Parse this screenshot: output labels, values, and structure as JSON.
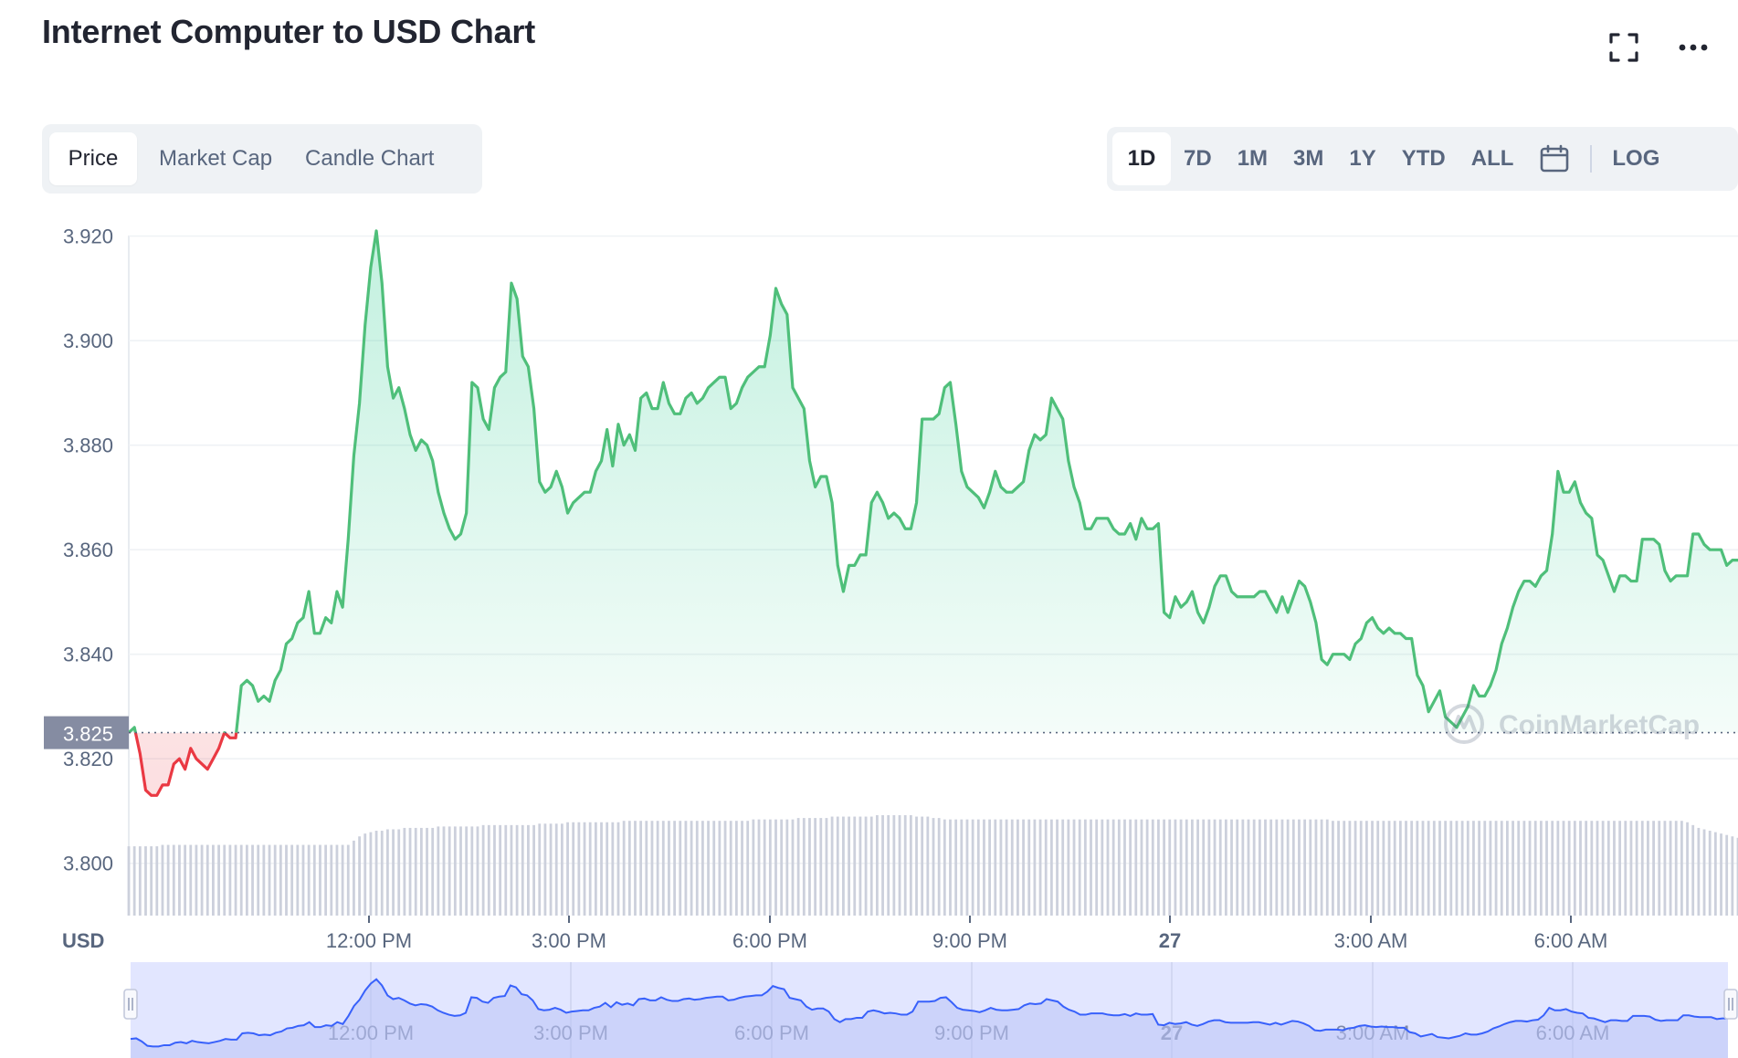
{
  "title": "Internet Computer to USD Chart",
  "header_icons": [
    "fullscreen-icon",
    "more-icon"
  ],
  "type_tabs": [
    {
      "label": "Price",
      "active": true
    },
    {
      "label": "Market Cap",
      "active": false
    },
    {
      "label": "Candle Chart",
      "active": false
    }
  ],
  "range_tabs": [
    {
      "label": "1D",
      "active": true
    },
    {
      "label": "7D",
      "active": false
    },
    {
      "label": "1M",
      "active": false
    },
    {
      "label": "3M",
      "active": false
    },
    {
      "label": "1Y",
      "active": false
    },
    {
      "label": "YTD",
      "active": false
    },
    {
      "label": "ALL",
      "active": false
    }
  ],
  "calendar_icon": "calendar-icon",
  "log_label": "LOG",
  "watermark": "CoinMarketCap",
  "colors": {
    "up": "#16c784",
    "line_up": "#4fbf7a",
    "down": "#ea3943",
    "brush": "#3861fb",
    "grid": "#eff2f5",
    "current_price_bg": "#858ca2"
  },
  "chart_data": {
    "type": "line",
    "ylabel": "USD",
    "ylim": [
      3.79,
      3.925
    ],
    "y_ticks": [
      "3.920",
      "3.900",
      "3.880",
      "3.860",
      "3.840",
      "3.820",
      "3.800"
    ],
    "x_ticks": [
      "12:00 PM",
      "3:00 PM",
      "6:00 PM",
      "9:00 PM",
      "27",
      "3:00 AM",
      "6:00 AM"
    ],
    "current_price": "3.825",
    "baseline": 3.825,
    "series": [
      {
        "values": [
          3.825,
          3.826,
          3.821,
          3.814,
          3.813,
          3.813,
          3.815,
          3.815,
          3.819,
          3.82,
          3.818,
          3.822,
          3.82,
          3.819,
          3.818,
          3.82,
          3.822,
          3.825,
          3.824,
          3.824,
          3.834,
          3.835,
          3.834,
          3.831,
          3.832,
          3.831,
          3.835,
          3.837,
          3.842,
          3.843,
          3.846,
          3.847,
          3.852,
          3.844,
          3.844,
          3.847,
          3.846,
          3.852,
          3.849,
          3.862,
          3.878,
          3.888,
          3.903,
          3.914,
          3.921,
          3.911,
          3.895,
          3.889,
          3.891,
          3.887,
          3.882,
          3.879,
          3.881,
          3.88,
          3.877,
          3.871,
          3.867,
          3.864,
          3.862,
          3.863,
          3.867,
          3.892,
          3.891,
          3.885,
          3.883,
          3.891,
          3.893,
          3.894,
          3.911,
          3.908,
          3.897,
          3.895,
          3.887,
          3.873,
          3.871,
          3.872,
          3.875,
          3.872,
          3.867,
          3.869,
          3.87,
          3.871,
          3.871,
          3.875,
          3.877,
          3.883,
          3.876,
          3.884,
          3.88,
          3.882,
          3.879,
          3.889,
          3.89,
          3.887,
          3.887,
          3.892,
          3.888,
          3.886,
          3.886,
          3.889,
          3.89,
          3.888,
          3.889,
          3.891,
          3.892,
          3.893,
          3.893,
          3.887,
          3.888,
          3.891,
          3.893,
          3.894,
          3.895,
          3.895,
          3.901,
          3.91,
          3.907,
          3.905,
          3.891,
          3.889,
          3.887,
          3.877,
          3.872,
          3.874,
          3.874,
          3.869,
          3.857,
          3.852,
          3.857,
          3.857,
          3.859,
          3.859,
          3.869,
          3.871,
          3.869,
          3.866,
          3.867,
          3.866,
          3.864,
          3.864,
          3.869,
          3.885,
          3.885,
          3.885,
          3.886,
          3.891,
          3.892,
          3.884,
          3.875,
          3.872,
          3.871,
          3.87,
          3.868,
          3.871,
          3.875,
          3.872,
          3.871,
          3.871,
          3.872,
          3.873,
          3.879,
          3.882,
          3.881,
          3.882,
          3.889,
          3.887,
          3.885,
          3.877,
          3.872,
          3.869,
          3.864,
          3.864,
          3.866,
          3.866,
          3.866,
          3.864,
          3.863,
          3.863,
          3.865,
          3.862,
          3.866,
          3.864,
          3.864,
          3.865,
          3.848,
          3.847,
          3.851,
          3.849,
          3.85,
          3.852,
          3.848,
          3.846,
          3.849,
          3.853,
          3.855,
          3.855,
          3.852,
          3.851,
          3.851,
          3.851,
          3.851,
          3.852,
          3.852,
          3.85,
          3.848,
          3.851,
          3.848,
          3.851,
          3.854,
          3.853,
          3.85,
          3.846,
          3.839,
          3.838,
          3.84,
          3.84,
          3.84,
          3.839,
          3.842,
          3.843,
          3.846,
          3.847,
          3.845,
          3.844,
          3.845,
          3.844,
          3.844,
          3.843,
          3.843,
          3.836,
          3.834,
          3.829,
          3.831,
          3.833,
          3.828,
          3.827,
          3.826,
          3.828,
          3.83,
          3.834,
          3.832,
          3.832,
          3.834,
          3.837,
          3.842,
          3.845,
          3.849,
          3.852,
          3.854,
          3.854,
          3.853,
          3.855,
          3.856,
          3.863,
          3.875,
          3.871,
          3.871,
          3.873,
          3.869,
          3.867,
          3.866,
          3.859,
          3.858,
          3.855,
          3.852,
          3.855,
          3.855,
          3.854,
          3.854,
          3.862,
          3.862,
          3.862,
          3.861,
          3.856,
          3.854,
          3.855,
          3.855,
          3.855,
          3.863,
          3.863,
          3.861,
          3.86,
          3.86,
          3.86,
          3.857,
          3.858,
          3.858
        ]
      }
    ],
    "volume": [
      0.49,
      0.49,
      0.49,
      0.49,
      0.49,
      0.49,
      0.5,
      0.5,
      0.5,
      0.5,
      0.5,
      0.5,
      0.5,
      0.5,
      0.5,
      0.5,
      0.5,
      0.5,
      0.5,
      0.5,
      0.5,
      0.5,
      0.5,
      0.5,
      0.5,
      0.5,
      0.5,
      0.5,
      0.5,
      0.5,
      0.5,
      0.5,
      0.5,
      0.5,
      0.5,
      0.5,
      0.5,
      0.5,
      0.5,
      0.5,
      0.53,
      0.56,
      0.58,
      0.59,
      0.6,
      0.6,
      0.61,
      0.61,
      0.61,
      0.62,
      0.62,
      0.62,
      0.62,
      0.62,
      0.62,
      0.63,
      0.63,
      0.63,
      0.63,
      0.63,
      0.63,
      0.63,
      0.63,
      0.64,
      0.64,
      0.64,
      0.64,
      0.64,
      0.64,
      0.64,
      0.64,
      0.64,
      0.64,
      0.65,
      0.65,
      0.65,
      0.65,
      0.65,
      0.66,
      0.66,
      0.66,
      0.66,
      0.66,
      0.66,
      0.66,
      0.66,
      0.66,
      0.66,
      0.67,
      0.67,
      0.67,
      0.67,
      0.67,
      0.67,
      0.67,
      0.67,
      0.67,
      0.67,
      0.67,
      0.67,
      0.67,
      0.67,
      0.67,
      0.67,
      0.67,
      0.67,
      0.67,
      0.67,
      0.67,
      0.67,
      0.67,
      0.68,
      0.68,
      0.68,
      0.68,
      0.68,
      0.68,
      0.68,
      0.68,
      0.69,
      0.69,
      0.69,
      0.69,
      0.69,
      0.69,
      0.7,
      0.7,
      0.7,
      0.7,
      0.7,
      0.7,
      0.7,
      0.7,
      0.71,
      0.71,
      0.71,
      0.71,
      0.71,
      0.71,
      0.71,
      0.7,
      0.7,
      0.7,
      0.69,
      0.69,
      0.68,
      0.68,
      0.68,
      0.68,
      0.68,
      0.68,
      0.68,
      0.68,
      0.68,
      0.68,
      0.68,
      0.68,
      0.68,
      0.68,
      0.68,
      0.68,
      0.68,
      0.68,
      0.68,
      0.68,
      0.68,
      0.68,
      0.68,
      0.68,
      0.68,
      0.68,
      0.68,
      0.68,
      0.68,
      0.68,
      0.68,
      0.68,
      0.68,
      0.68,
      0.68,
      0.68,
      0.68,
      0.68,
      0.68,
      0.68,
      0.68,
      0.68,
      0.68,
      0.68,
      0.68,
      0.68,
      0.68,
      0.68,
      0.68,
      0.68,
      0.68,
      0.68,
      0.68,
      0.68,
      0.68,
      0.68,
      0.68,
      0.68,
      0.68,
      0.68,
      0.68,
      0.68,
      0.68,
      0.68,
      0.68,
      0.68,
      0.68,
      0.68,
      0.68,
      0.67,
      0.67,
      0.67,
      0.67,
      0.67,
      0.67,
      0.67,
      0.67,
      0.67,
      0.67,
      0.67,
      0.67,
      0.67,
      0.67,
      0.67,
      0.67,
      0.67,
      0.67,
      0.67,
      0.67,
      0.67,
      0.67,
      0.67,
      0.67,
      0.67,
      0.67,
      0.67,
      0.67,
      0.67,
      0.67,
      0.67,
      0.67,
      0.67,
      0.67,
      0.67,
      0.67,
      0.67,
      0.67,
      0.67,
      0.67,
      0.67,
      0.67,
      0.67,
      0.67,
      0.67,
      0.67,
      0.67,
      0.67,
      0.67,
      0.67,
      0.67,
      0.67,
      0.67,
      0.67,
      0.67,
      0.67,
      0.67,
      0.67,
      0.67,
      0.67,
      0.67,
      0.67,
      0.67,
      0.66,
      0.64,
      0.62,
      0.61,
      0.6,
      0.59,
      0.58,
      0.57,
      0.56,
      0.55,
      0.55,
      0.55,
      0.55,
      0.55,
      0.55,
      0.55,
      0.55
    ]
  }
}
